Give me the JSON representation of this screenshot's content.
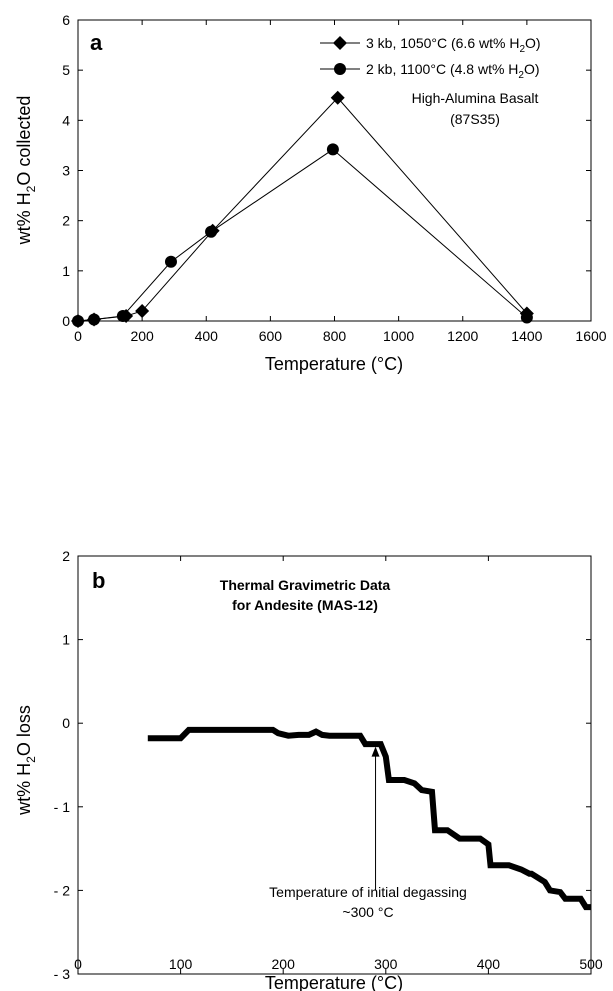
{
  "chart_data": [
    {
      "type": "line",
      "panel_label": "a",
      "xlabel": "Temperature (°C)",
      "ylabel": {
        "prefix": "wt% H",
        "sub": "2",
        "suffix": "O collected"
      },
      "xlim": [
        0,
        1600
      ],
      "ylim": [
        0,
        6
      ],
      "xticks": [
        0,
        200,
        400,
        600,
        800,
        1000,
        1200,
        1400,
        1600
      ],
      "yticks": [
        0,
        1,
        2,
        3,
        4,
        5,
        6
      ],
      "annotation_lines": [
        "High-Alumina Basalt",
        "(87S35)"
      ],
      "legend_position": "top-right",
      "series": [
        {
          "name": "3 kb, 1050°C (6.6 wt% H2O)",
          "legend": {
            "prefix": "3 kb, 1050°C (6.6 wt% H",
            "sub": "2",
            "suffix": "O)"
          },
          "marker": "diamond",
          "x": [
            0,
            50,
            150,
            200,
            420,
            810,
            1400
          ],
          "y": [
            0.0,
            0.03,
            0.1,
            0.2,
            1.8,
            4.45,
            0.15
          ]
        },
        {
          "name": "2 kb, 1100°C (4.8 wt% H2O)",
          "legend": {
            "prefix": "2 kb, 1100°C (4.8 wt% H",
            "sub": "2",
            "suffix": "O)"
          },
          "marker": "circle",
          "x": [
            0,
            50,
            140,
            290,
            415,
            795,
            1400
          ],
          "y": [
            0.0,
            0.03,
            0.1,
            1.18,
            1.78,
            3.42,
            0.07
          ]
        }
      ]
    },
    {
      "type": "line",
      "panel_label": "b",
      "title_lines": [
        "Thermal Gravimetric Data",
        "for Andesite (MAS-12)"
      ],
      "xlabel": "Temperature (°C)",
      "ylabel": {
        "prefix": "wt% H",
        "sub": "2",
        "suffix": "O loss"
      },
      "xlim": [
        0,
        500
      ],
      "ylim": [
        -3,
        2
      ],
      "xticks": [
        0,
        100,
        200,
        300,
        400,
        500
      ],
      "yticks": [
        -3,
        -2,
        -1,
        0,
        1,
        2
      ],
      "ytick_labels": [
        "- 3",
        "- 2",
        "- 1",
        "0",
        "1",
        "2"
      ],
      "annotation": {
        "lines": [
          "Temperature of initial degassing",
          "~300 °C"
        ],
        "arrow_x": 290,
        "arrow_y_from": -2.0,
        "arrow_y_to": -0.28
      },
      "series": [
        {
          "x": [
            68,
            100,
            108,
            190,
            195,
            205,
            215,
            225,
            232,
            238,
            245,
            275,
            280,
            295,
            300,
            303,
            318,
            328,
            335,
            345,
            348,
            360,
            372,
            385,
            392,
            400,
            402,
            420,
            432,
            440,
            442,
            455,
            460,
            470,
            475,
            490,
            495,
            500
          ],
          "y": [
            -0.18,
            -0.18,
            -0.08,
            -0.08,
            -0.12,
            -0.15,
            -0.14,
            -0.14,
            -0.1,
            -0.14,
            -0.15,
            -0.15,
            -0.25,
            -0.25,
            -0.4,
            -0.68,
            -0.68,
            -0.72,
            -0.8,
            -0.82,
            -1.28,
            -1.28,
            -1.38,
            -1.38,
            -1.38,
            -1.45,
            -1.7,
            -1.7,
            -1.75,
            -1.8,
            -1.8,
            -1.9,
            -2.0,
            -2.02,
            -2.1,
            -2.1,
            -2.2,
            -2.2
          ]
        }
      ]
    }
  ]
}
